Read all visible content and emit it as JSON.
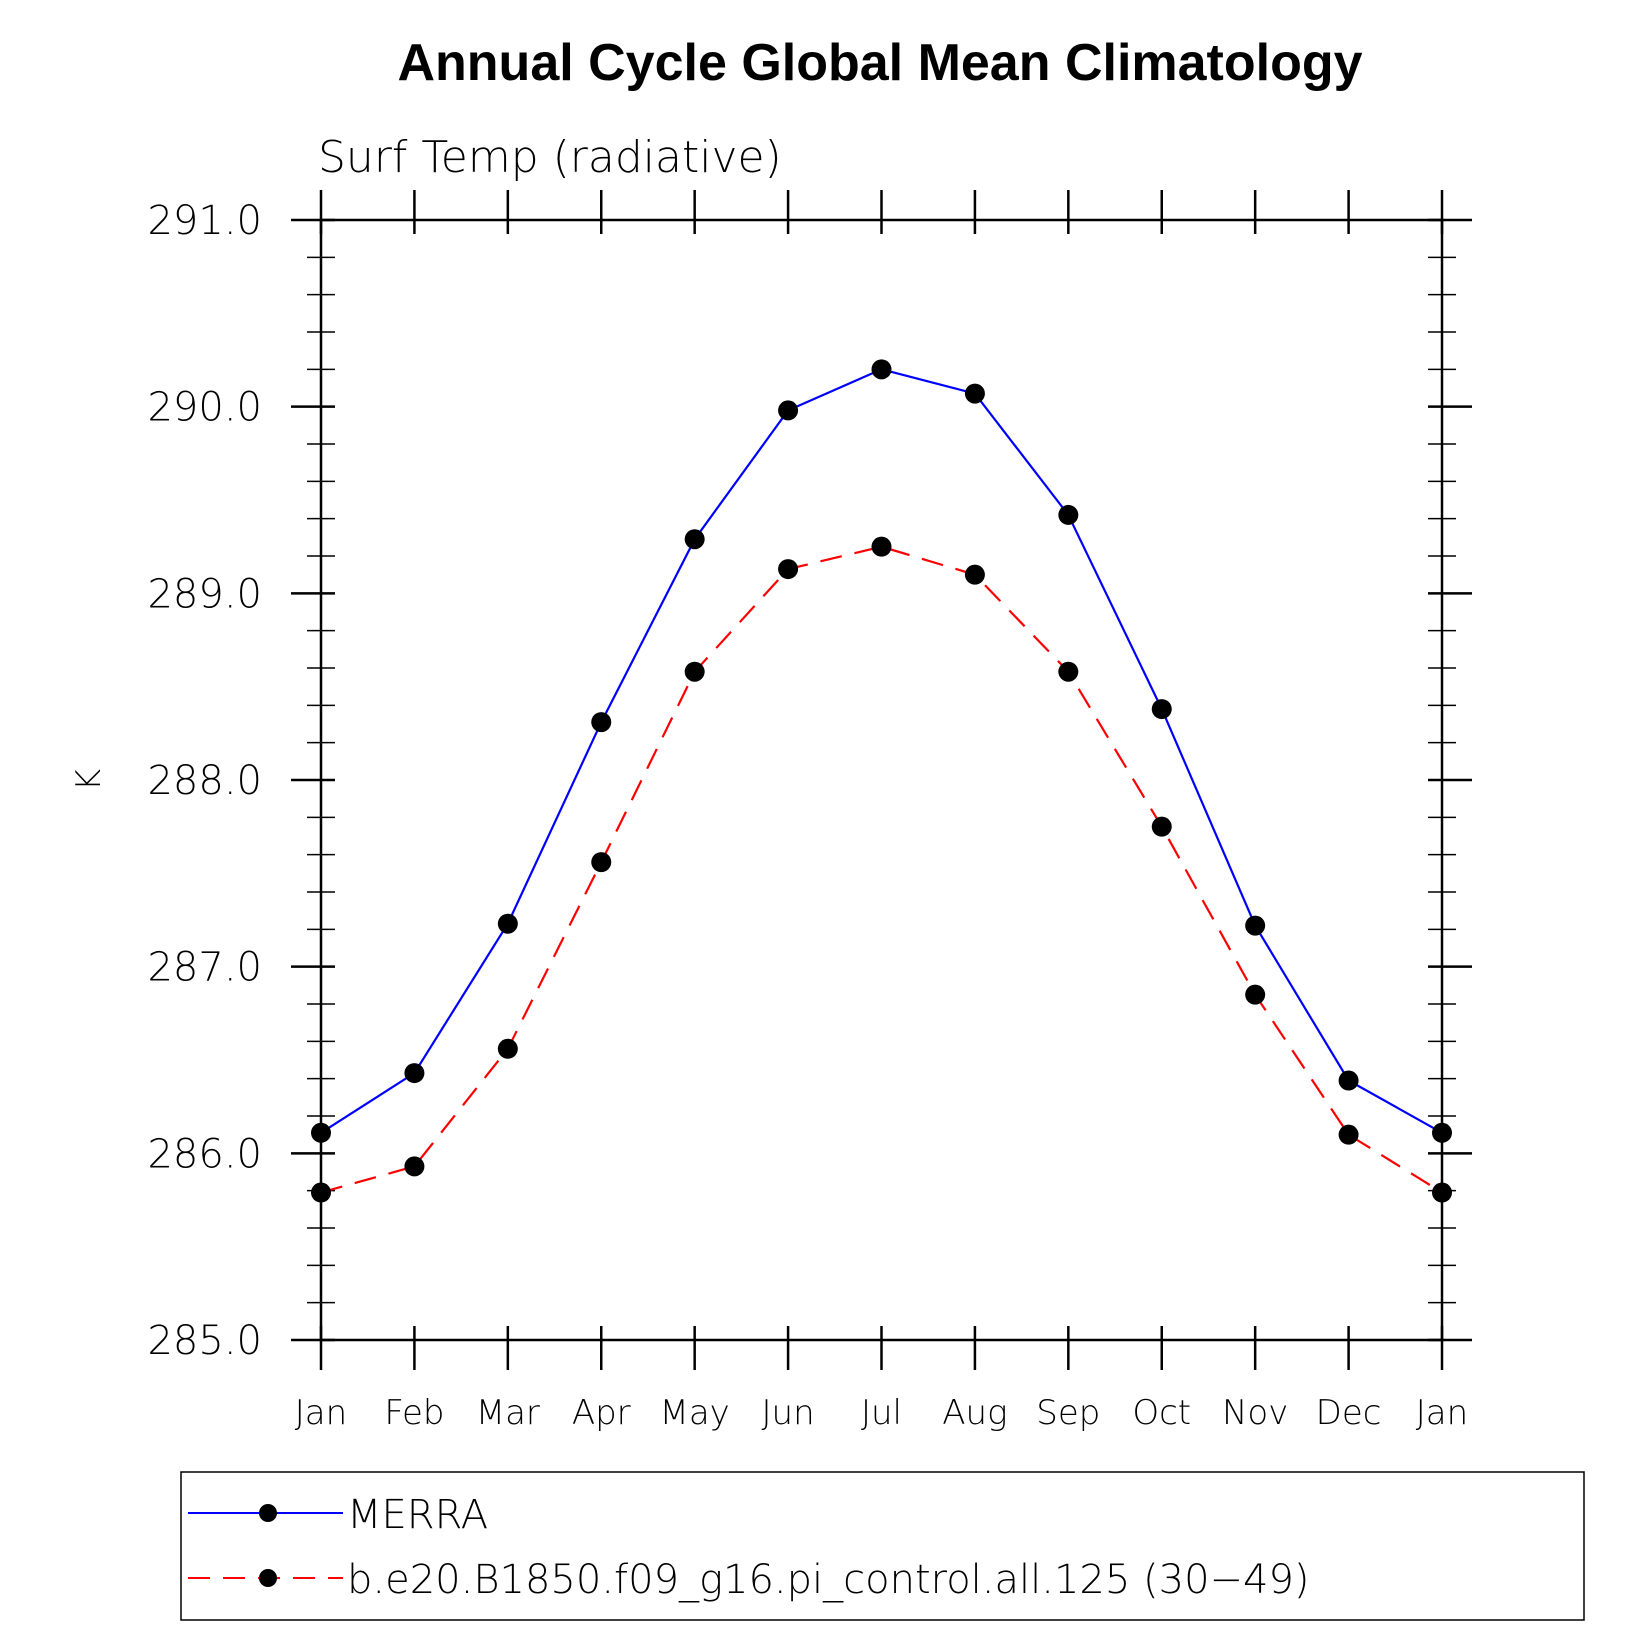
{
  "chart_data": {
    "type": "line",
    "title": "Annual Cycle Global Mean Climatology",
    "subtitle": "Surf Temp (radiative)",
    "ylabel": "K",
    "xlabel": "",
    "ylim": [
      285.0,
      291.0
    ],
    "yticks": [
      "285.0",
      "286.0",
      "287.0",
      "288.0",
      "289.0",
      "290.0",
      "291.0"
    ],
    "categories": [
      "Jan",
      "Feb",
      "Mar",
      "Apr",
      "May",
      "Jun",
      "Jul",
      "Aug",
      "Sep",
      "Oct",
      "Nov",
      "Dec",
      "Jan"
    ],
    "grid": false,
    "legend_position": "bottom",
    "series": [
      {
        "name": "MERRA",
        "color": "#0000ff",
        "dash": "solid",
        "values": [
          286.11,
          286.43,
          287.23,
          288.31,
          289.29,
          289.98,
          290.2,
          290.07,
          289.42,
          288.38,
          287.22,
          286.39,
          286.11
        ]
      },
      {
        "name": "b.e20.B1850.f09_g16.pi_control.all.125 (30−49)",
        "color": "#ff0000",
        "dash": "dashed",
        "values": [
          285.79,
          285.93,
          286.56,
          287.56,
          288.58,
          289.13,
          289.25,
          289.1,
          288.58,
          287.75,
          286.85,
          286.1,
          285.79
        ]
      }
    ]
  }
}
